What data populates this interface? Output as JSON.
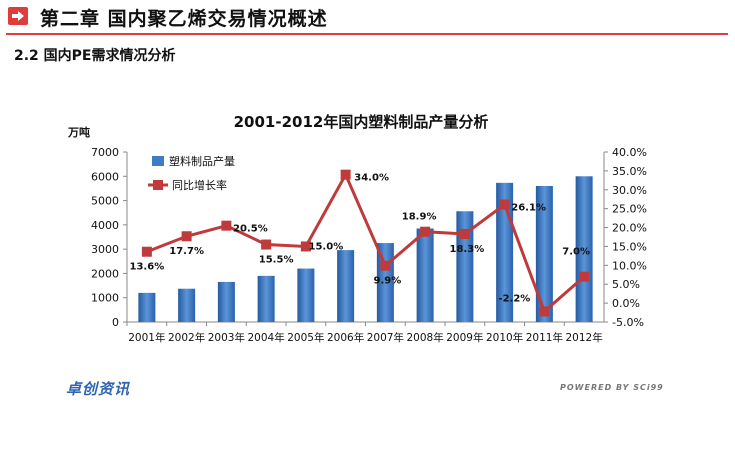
{
  "header": {
    "title": "第二章 国内聚乙烯交易情况概述",
    "accent_color": "#e03c3c"
  },
  "section": {
    "title": "2.2 国内PE需求情况分析"
  },
  "chart_data": {
    "type": "bar+line",
    "title": "2001-2012年国内塑料制品产量分析",
    "y_left_unit": "万吨",
    "categories": [
      "2001年",
      "2002年",
      "2003年",
      "2004年",
      "2005年",
      "2006年",
      "2007年",
      "2008年",
      "2009年",
      "2010年",
      "2011年",
      "2012年"
    ],
    "series": [
      {
        "name": "塑料制品产量",
        "type": "bar",
        "axis": "left",
        "color": "#3f7cc4",
        "values": [
          1200,
          1370,
          1650,
          1900,
          2200,
          2960,
          3250,
          3850,
          4560,
          5730,
          5600,
          6000
        ]
      },
      {
        "name": "同比增长率",
        "type": "line",
        "axis": "right",
        "color": "#c0393b",
        "values": [
          13.6,
          17.7,
          20.5,
          15.5,
          15.0,
          34.0,
          9.9,
          18.9,
          18.3,
          26.1,
          -2.2,
          7.0
        ],
        "labels": [
          "13.6%",
          "17.7%",
          "20.5%",
          "15.5%",
          "15.0%",
          "34.0%",
          "9.9%",
          "18.9%",
          "18.3%",
          "26.1%",
          "-2.2%",
          "7.0%"
        ]
      }
    ],
    "y_left": {
      "min": 0,
      "max": 7000,
      "ticks": [
        "0",
        "1000",
        "2000",
        "3000",
        "4000",
        "5000",
        "6000",
        "7000"
      ]
    },
    "y_right": {
      "min": -5,
      "max": 40,
      "ticks": [
        "-5.0%",
        "0.0%",
        "5.0%",
        "10.0%",
        "15.0%",
        "20.0%",
        "25.0%",
        "30.0%",
        "35.0%",
        "40.0%"
      ]
    },
    "legend_position": "top-left"
  },
  "footer": {
    "brand": "卓创资讯",
    "powered_by": "POWERED BY SCi99"
  }
}
